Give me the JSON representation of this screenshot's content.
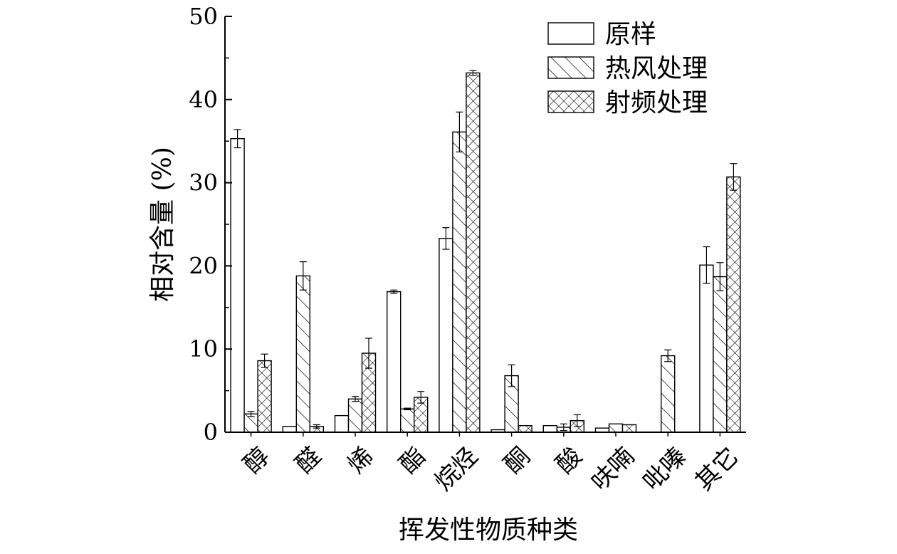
{
  "chart_data": {
    "type": "bar",
    "xlabel": "挥发性物质种类",
    "ylabel": "相对含量 (%)",
    "ylim": [
      0,
      50
    ],
    "yticks": [
      0,
      10,
      20,
      30,
      40,
      50
    ],
    "legend_position": "top-right",
    "categories": [
      "醇",
      "醛",
      "烯",
      "酯",
      "烷烃",
      "酮",
      "酸",
      "呋喃",
      "吡嗪",
      "其它"
    ],
    "series": [
      {
        "name": "原样",
        "pattern": "blank",
        "values": [
          35.3,
          0.7,
          2.0,
          16.9,
          23.3,
          0.3,
          0.8,
          0.5,
          0.0,
          20.1
        ],
        "errors": [
          1.1,
          0.0,
          0.0,
          0.2,
          1.3,
          0.0,
          0.0,
          0.0,
          0.0,
          2.2
        ]
      },
      {
        "name": "热风处理",
        "pattern": "diagonal",
        "values": [
          2.2,
          18.8,
          4.0,
          2.8,
          36.1,
          6.8,
          0.6,
          1.0,
          9.2,
          18.7
        ],
        "errors": [
          0.3,
          1.7,
          0.3,
          0.1,
          2.4,
          1.3,
          0.4,
          0.0,
          0.7,
          1.7
        ]
      },
      {
        "name": "射频处理",
        "pattern": "crosshatch",
        "values": [
          8.6,
          0.7,
          9.5,
          4.2,
          43.2,
          0.8,
          1.4,
          0.9,
          0.0,
          30.7
        ],
        "errors": [
          0.8,
          0.2,
          1.8,
          0.7,
          0.3,
          0.0,
          0.7,
          0.0,
          0.0,
          1.6
        ]
      }
    ]
  }
}
